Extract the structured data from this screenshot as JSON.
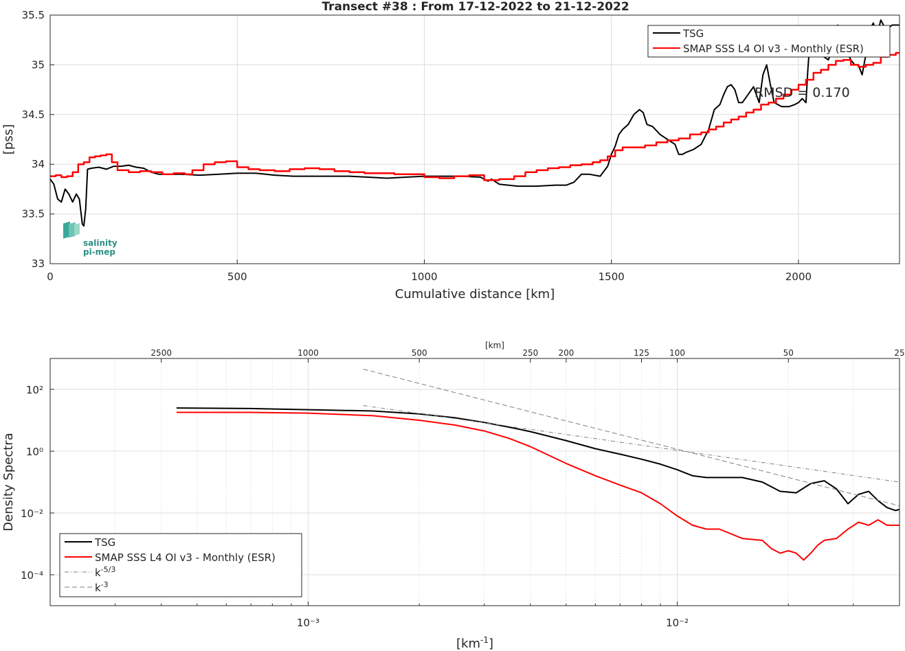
{
  "title": "Transect #38 : From 17-12-2022 to 21-12-2022",
  "logo": {
    "line1": "salinity",
    "line2": "pi-mep"
  },
  "colors": {
    "tsg": "#000000",
    "smap": "#ff0000",
    "slope": "#7f7f7f"
  },
  "chart_data": [
    {
      "type": "line",
      "xlabel": "Cumulative distance [km]",
      "ylabel": "[pss]",
      "xlim": [
        0,
        2270
      ],
      "ylim": [
        33,
        35.5
      ],
      "xticks": [
        0,
        500,
        1000,
        1500,
        2000
      ],
      "yticks": [
        33,
        33.5,
        34,
        34.5,
        35,
        35.5
      ],
      "grid": true,
      "legend_position": "top-right",
      "annotation": "RMSD = 0.170",
      "series": [
        {
          "name": "TSG",
          "x": [
            0,
            10,
            20,
            30,
            40,
            50,
            60,
            70,
            78,
            86,
            90,
            95,
            100,
            110,
            130,
            150,
            170,
            190,
            210,
            230,
            250,
            270,
            290,
            310,
            350,
            400,
            450,
            500,
            550,
            600,
            650,
            700,
            750,
            800,
            850,
            900,
            950,
            1000,
            1050,
            1100,
            1150,
            1170,
            1180,
            1200,
            1250,
            1300,
            1350,
            1380,
            1400,
            1420,
            1440,
            1470,
            1490,
            1500,
            1510,
            1520,
            1530,
            1545,
            1560,
            1575,
            1585,
            1595,
            1610,
            1630,
            1650,
            1670,
            1680,
            1690,
            1700,
            1720,
            1740,
            1760,
            1775,
            1790,
            1800,
            1810,
            1820,
            1830,
            1840,
            1850,
            1865,
            1880,
            1895,
            1905,
            1915,
            1925,
            1935,
            1955,
            1975,
            1990,
            2000,
            2010,
            2020,
            2025,
            2030,
            2040,
            2060,
            2080,
            2095,
            2105,
            2120,
            2140,
            2150,
            2160,
            2170,
            2180,
            2190,
            2200,
            2210,
            2220,
            2230,
            2240,
            2250,
            2260,
            2270
          ],
          "y": [
            33.85,
            33.8,
            33.65,
            33.62,
            33.75,
            33.7,
            33.62,
            33.7,
            33.65,
            33.4,
            33.38,
            33.55,
            33.95,
            33.96,
            33.97,
            33.95,
            33.98,
            33.98,
            33.99,
            33.97,
            33.96,
            33.92,
            33.9,
            33.9,
            33.9,
            33.89,
            33.9,
            33.91,
            33.91,
            33.89,
            33.88,
            33.88,
            33.88,
            33.88,
            33.87,
            33.86,
            33.87,
            33.88,
            33.88,
            33.88,
            33.87,
            33.83,
            33.85,
            33.8,
            33.78,
            33.78,
            33.79,
            33.79,
            33.82,
            33.9,
            33.9,
            33.88,
            33.98,
            34.1,
            34.18,
            34.3,
            34.35,
            34.4,
            34.5,
            34.55,
            34.52,
            34.4,
            34.38,
            34.3,
            34.25,
            34.2,
            34.1,
            34.1,
            34.12,
            34.15,
            34.2,
            34.35,
            34.55,
            34.6,
            34.7,
            34.78,
            34.8,
            34.75,
            34.62,
            34.62,
            34.7,
            34.78,
            34.62,
            34.9,
            35.0,
            34.8,
            34.62,
            34.58,
            34.58,
            34.6,
            34.62,
            34.66,
            34.62,
            34.95,
            35.2,
            35.25,
            35.1,
            35.05,
            35.2,
            35.4,
            35.2,
            35.05,
            35.0,
            35.0,
            34.9,
            35.1,
            35.35,
            35.42,
            35.3,
            35.45,
            35.38,
            35.37,
            35.4,
            35.4,
            35.4
          ]
        },
        {
          "name": "SMAP SSS L4 OI v3 - Monthly (ESR)",
          "x": [
            0,
            15,
            30,
            45,
            60,
            75,
            90,
            105,
            120,
            135,
            150,
            165,
            180,
            210,
            240,
            270,
            300,
            330,
            360,
            380,
            410,
            440,
            470,
            500,
            530,
            560,
            600,
            640,
            680,
            720,
            760,
            800,
            840,
            880,
            920,
            960,
            1000,
            1040,
            1080,
            1120,
            1160,
            1200,
            1240,
            1270,
            1300,
            1330,
            1360,
            1390,
            1420,
            1450,
            1470,
            1490,
            1510,
            1530,
            1560,
            1590,
            1620,
            1650,
            1680,
            1710,
            1740,
            1760,
            1780,
            1800,
            1820,
            1840,
            1860,
            1880,
            1900,
            1920,
            1940,
            1960,
            1980,
            2000,
            2020,
            2040,
            2060,
            2080,
            2100,
            2120,
            2140,
            2160,
            2180,
            2200,
            2220,
            2240,
            2260,
            2270
          ],
          "y": [
            33.88,
            33.89,
            33.87,
            33.88,
            33.92,
            34.0,
            34.02,
            34.07,
            34.08,
            34.09,
            34.1,
            34.02,
            33.94,
            33.92,
            33.93,
            33.92,
            33.9,
            33.91,
            33.9,
            33.94,
            34.0,
            34.02,
            34.03,
            33.97,
            33.95,
            33.94,
            33.93,
            33.95,
            33.96,
            33.95,
            33.93,
            33.92,
            33.91,
            33.91,
            33.9,
            33.9,
            33.87,
            33.86,
            33.88,
            33.89,
            33.84,
            33.85,
            33.88,
            33.92,
            33.94,
            33.96,
            33.97,
            33.99,
            34.0,
            34.02,
            34.04,
            34.08,
            34.14,
            34.17,
            34.17,
            34.19,
            34.22,
            34.24,
            34.26,
            34.3,
            34.32,
            34.35,
            34.38,
            34.42,
            34.45,
            34.48,
            34.52,
            34.55,
            34.6,
            34.62,
            34.66,
            34.7,
            34.75,
            34.8,
            34.85,
            34.92,
            34.95,
            35.0,
            35.04,
            35.05,
            35.0,
            34.98,
            35.0,
            35.02,
            35.08,
            35.1,
            35.12,
            35.12
          ]
        }
      ]
    },
    {
      "type": "line",
      "xlabel": "[km⁻¹]",
      "ylabel": "Density Spectra",
      "top_axis_label": "[km]",
      "x_scale": "log",
      "y_scale": "log",
      "xlim": [
        0.0002,
        0.04
      ],
      "ylim": [
        1e-05,
        1000
      ],
      "xticks": [
        {
          "value": 0.001,
          "label": "10⁻³"
        },
        {
          "value": 0.01,
          "label": "10⁻²"
        }
      ],
      "yticks": [
        {
          "value": 0.0001,
          "label": "10⁻⁴"
        },
        {
          "value": 0.01,
          "label": "10⁻²"
        },
        {
          "value": 1,
          "label": "10⁰"
        },
        {
          "value": 100,
          "label": "10²"
        }
      ],
      "top_ticks_km": [
        2500,
        1000,
        500,
        250,
        200,
        125,
        100,
        50,
        25
      ],
      "grid": true,
      "legend_position": "bottom-left",
      "series": [
        {
          "name": "TSG",
          "x": [
            0.00044,
            0.0007,
            0.001,
            0.0015,
            0.002,
            0.0025,
            0.003,
            0.0035,
            0.004,
            0.005,
            0.006,
            0.007,
            0.008,
            0.009,
            0.01,
            0.011,
            0.012,
            0.013,
            0.015,
            0.017,
            0.019,
            0.021,
            0.023,
            0.025,
            0.027,
            0.029,
            0.031,
            0.033,
            0.035,
            0.037,
            0.039,
            0.04
          ],
          "y": [
            25,
            24,
            22,
            20,
            16,
            12,
            8.5,
            6,
            4.3,
            2.2,
            1.2,
            0.8,
            0.55,
            0.38,
            0.25,
            0.16,
            0.14,
            0.14,
            0.14,
            0.1,
            0.05,
            0.045,
            0.09,
            0.11,
            0.06,
            0.02,
            0.04,
            0.05,
            0.025,
            0.015,
            0.012,
            0.013
          ]
        },
        {
          "name": "SMAP SSS L4 OI v3 - Monthly (ESR)",
          "x": [
            0.00044,
            0.0007,
            0.001,
            0.0015,
            0.002,
            0.0025,
            0.003,
            0.0035,
            0.004,
            0.005,
            0.006,
            0.007,
            0.008,
            0.009,
            0.01,
            0.011,
            0.012,
            0.013,
            0.015,
            0.017,
            0.018,
            0.019,
            0.02,
            0.021,
            0.022,
            0.023,
            0.024,
            0.025,
            0.027,
            0.029,
            0.031,
            0.033,
            0.035,
            0.037,
            0.04
          ],
          "y": [
            18,
            18,
            17,
            14,
            10,
            7,
            4.5,
            2.6,
            1.4,
            0.4,
            0.16,
            0.08,
            0.045,
            0.02,
            0.008,
            0.004,
            0.003,
            0.003,
            0.0015,
            0.0013,
            0.0007,
            0.0005,
            0.0006,
            0.0005,
            0.0003,
            0.0005,
            0.0009,
            0.0013,
            0.0015,
            0.003,
            0.005,
            0.004,
            0.006,
            0.004,
            0.004
          ]
        },
        {
          "name": "k⁻⁵ᐟ³",
          "label_base": "k",
          "label_exp": "-5/3",
          "x": [
            0.00141,
            0.04
          ],
          "y": [
            30,
            0.1
          ]
        },
        {
          "name": "k⁻³",
          "label_base": "k",
          "label_exp": "-3",
          "x": [
            0.00141,
            0.04
          ],
          "y": [
            450,
            0.017
          ]
        }
      ]
    }
  ]
}
